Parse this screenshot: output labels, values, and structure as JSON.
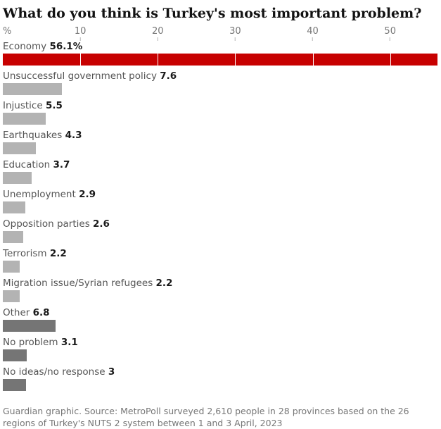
{
  "chart_data": {
    "type": "bar",
    "orientation": "horizontal",
    "title": "What do you think is Turkey's most important problem?",
    "xlabel": "%",
    "ylabel": "",
    "categories": [
      "Economy",
      "Unsuccessful government policy",
      "Injustice",
      "Earthquakes",
      "Education",
      "Unemployment",
      "Opposition parties",
      "Terrorism",
      "Migration issue/Syrian refugees",
      "Other",
      "No problem",
      "No ideas/no response"
    ],
    "values": [
      56.1,
      7.6,
      5.5,
      4.3,
      3.7,
      2.9,
      2.6,
      2.2,
      2.2,
      6.8,
      3.1,
      3
    ],
    "value_labels": [
      "56.1%",
      "7.6",
      "5.5",
      "4.3",
      "3.7",
      "2.9",
      "2.6",
      "2.2",
      "2.2",
      "6.8",
      "3.1",
      "3"
    ],
    "bar_roles": [
      "highlight",
      "neutral",
      "neutral",
      "neutral",
      "neutral",
      "neutral",
      "neutral",
      "neutral",
      "neutral",
      "muted_dark",
      "muted_dark",
      "muted_dark"
    ],
    "xticks": [
      10,
      20,
      30,
      40,
      50
    ],
    "xlim": [
      0,
      56.2
    ],
    "legend": "none",
    "grid": "white vertical gridlines drawn over bars at each x tick"
  },
  "colors": {
    "highlight": "#c70000",
    "neutral": "#b3b3b3",
    "muted_dark": "#757575",
    "title_text": "#121212",
    "label_text": "#545454",
    "value_text": "#1a1a1a",
    "axis_text": "#767676",
    "tick_mark": "#b3b3b3",
    "footer_text": "#767676",
    "border": "#dcdcdc",
    "background": "#ffffff"
  },
  "footer": {
    "source": "Guardian graphic. Source: MetroPoll surveyed 2,610 people in 28 provinces based on the 26 regions of Turkey's NUTS 2 system between 1 and 3 April, 2023"
  }
}
